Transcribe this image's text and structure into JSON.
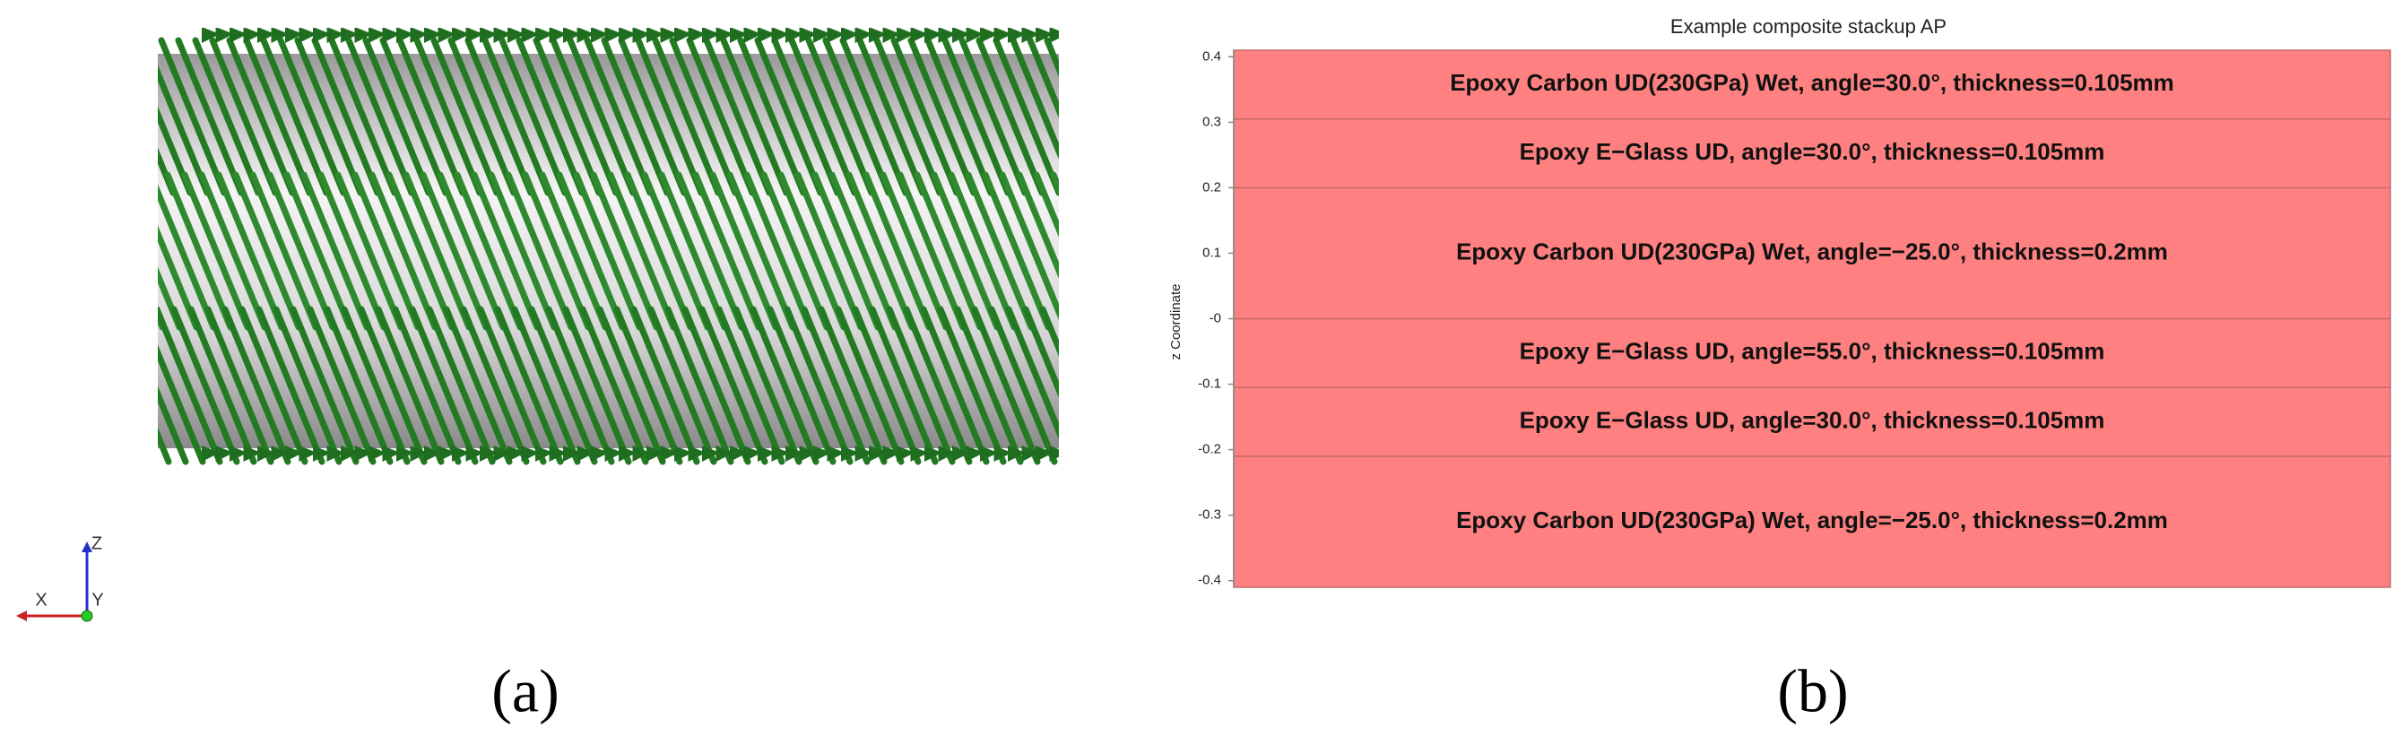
{
  "figure_a": {
    "triad": [
      "X",
      "Y",
      "Z"
    ],
    "caption": "(a)"
  },
  "chart_data": {
    "type": "layer-stack",
    "title": "Example composite stackup AP",
    "y_label": "z Coordinate",
    "layers": [
      {
        "label": "Epoxy Carbon UD(230GPa) Wet, angle=−25.0°, thickness=0.2mm",
        "thickness": 0.2
      },
      {
        "label": "Epoxy E−Glass UD, angle=30.0°, thickness=0.105mm",
        "thickness": 0.105
      },
      {
        "label": "Epoxy E−Glass UD, angle=55.0°, thickness=0.105mm",
        "thickness": 0.105
      },
      {
        "label": "Epoxy Carbon UD(230GPa) Wet, angle=−25.0°, thickness=0.2mm",
        "thickness": 0.2
      },
      {
        "label": "Epoxy E−Glass UD, angle=30.0°, thickness=0.105mm",
        "thickness": 0.105
      },
      {
        "label": "Epoxy Carbon UD(230GPa) Wet, angle=30.0°, thickness=0.105mm",
        "thickness": 0.105
      }
    ],
    "color": "#ff8080",
    "ylim": [
      -0.41,
      0.41
    ],
    "yticks": [
      0.4,
      0.3,
      0.2,
      0.1,
      {
        "value": 0,
        "label": "-0"
      },
      -0.1,
      -0.2,
      -0.3,
      -0.4
    ],
    "caption": "(b)"
  }
}
